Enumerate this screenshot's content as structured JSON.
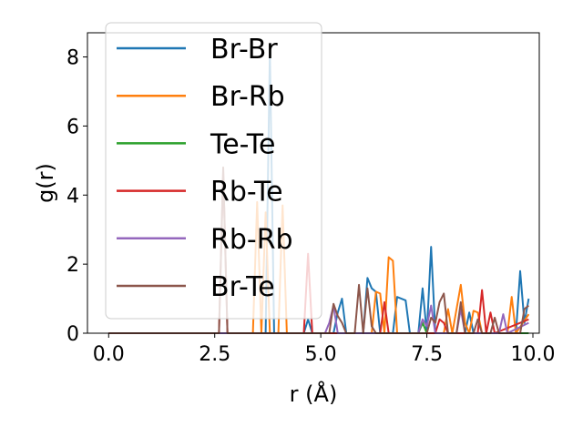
{
  "chart_data": {
    "type": "line",
    "xlabel": "r (Å)",
    "ylabel": "g(r)",
    "xlim": [
      -0.5,
      10.15
    ],
    "ylim": [
      0,
      8.7
    ],
    "xticks": [
      0.0,
      2.5,
      5.0,
      7.5,
      10.0
    ],
    "xtick_labels": [
      "0.0",
      "2.5",
      "5.0",
      "7.5",
      "10.0"
    ],
    "yticks": [
      0,
      2,
      4,
      6,
      8
    ],
    "ytick_labels": [
      "0",
      "2",
      "4",
      "6",
      "8"
    ],
    "grid": false,
    "legend_position": "top-left",
    "series": [
      {
        "name": "Br-Br",
        "color": "#1f77b4",
        "points": [
          [
            0,
            0
          ],
          [
            3.6,
            0
          ],
          [
            3.7,
            0
          ],
          [
            3.8,
            8.2
          ],
          [
            3.9,
            0
          ],
          [
            4.6,
            0
          ],
          [
            4.7,
            0.4
          ],
          [
            4.8,
            0
          ],
          [
            5.3,
            0
          ],
          [
            5.4,
            0.6
          ],
          [
            5.5,
            1.0
          ],
          [
            5.6,
            0
          ],
          [
            6.0,
            0
          ],
          [
            6.1,
            1.6
          ],
          [
            6.2,
            1.3
          ],
          [
            6.3,
            1.2
          ],
          [
            6.4,
            0
          ],
          [
            6.7,
            0
          ],
          [
            6.8,
            1.05
          ],
          [
            6.9,
            1.0
          ],
          [
            7.0,
            0.95
          ],
          [
            7.1,
            0
          ],
          [
            7.3,
            0
          ],
          [
            7.4,
            1.3
          ],
          [
            7.5,
            0
          ],
          [
            7.6,
            2.5
          ],
          [
            7.7,
            0
          ],
          [
            8.4,
            0
          ],
          [
            8.5,
            0.6
          ],
          [
            8.6,
            0
          ],
          [
            9.6,
            0
          ],
          [
            9.7,
            1.8
          ],
          [
            9.8,
            0.3
          ],
          [
            9.9,
            1.0
          ]
        ]
      },
      {
        "name": "Br-Rb",
        "color": "#ff7f0e",
        "points": [
          [
            0,
            0
          ],
          [
            3.4,
            0
          ],
          [
            3.5,
            3.8
          ],
          [
            3.6,
            0
          ],
          [
            3.7,
            3.5
          ],
          [
            3.8,
            0
          ],
          [
            4.0,
            0
          ],
          [
            4.1,
            3.7
          ],
          [
            4.2,
            0
          ],
          [
            6.2,
            0
          ],
          [
            6.3,
            1.2
          ],
          [
            6.4,
            1.15
          ],
          [
            6.5,
            0
          ],
          [
            6.6,
            2.2
          ],
          [
            6.7,
            2.1
          ],
          [
            6.8,
            0
          ],
          [
            7.9,
            0
          ],
          [
            8.0,
            0.7
          ],
          [
            8.1,
            0
          ],
          [
            8.3,
            1.4
          ],
          [
            8.4,
            0.3
          ],
          [
            8.5,
            0
          ],
          [
            8.6,
            0.65
          ],
          [
            8.7,
            0.6
          ],
          [
            8.8,
            0
          ],
          [
            9.4,
            0
          ],
          [
            9.5,
            1.05
          ],
          [
            9.6,
            0
          ],
          [
            9.9,
            0.55
          ]
        ]
      },
      {
        "name": "Te-Te",
        "color": "#2ca02c",
        "points": [
          [
            0,
            0
          ],
          [
            7.3,
            0
          ],
          [
            7.4,
            0.3
          ],
          [
            7.5,
            0
          ],
          [
            9.9,
            0
          ]
        ]
      },
      {
        "name": "Rb-Te",
        "color": "#d62728",
        "points": [
          [
            0,
            0
          ],
          [
            2.6,
            0
          ],
          [
            2.7,
            4.7
          ],
          [
            2.8,
            0
          ],
          [
            4.6,
            0
          ],
          [
            4.7,
            2.3
          ],
          [
            4.8,
            0
          ],
          [
            6.4,
            0
          ],
          [
            6.5,
            0.9
          ],
          [
            6.6,
            0
          ],
          [
            7.7,
            0
          ],
          [
            7.8,
            0.4
          ],
          [
            7.9,
            0.3
          ],
          [
            8.0,
            0
          ],
          [
            8.7,
            0
          ],
          [
            8.8,
            1.25
          ],
          [
            8.9,
            0
          ],
          [
            9.0,
            0.6
          ],
          [
            9.1,
            0
          ],
          [
            9.9,
            0.4
          ]
        ]
      },
      {
        "name": "Rb-Rb",
        "color": "#9467bd",
        "points": [
          [
            0,
            0
          ],
          [
            5.1,
            0
          ],
          [
            5.2,
            0.3
          ],
          [
            5.3,
            0.8
          ],
          [
            5.4,
            0
          ],
          [
            7.3,
            0
          ],
          [
            7.4,
            0.4
          ],
          [
            7.5,
            0.2
          ],
          [
            7.6,
            0.8
          ],
          [
            7.7,
            0
          ],
          [
            8.2,
            0
          ],
          [
            8.3,
            0.7
          ],
          [
            8.4,
            0
          ],
          [
            9.2,
            0
          ],
          [
            9.3,
            0.55
          ],
          [
            9.4,
            0
          ],
          [
            9.9,
            0.3
          ]
        ]
      },
      {
        "name": "Br-Te",
        "color": "#8c564b",
        "points": [
          [
            0,
            0
          ],
          [
            2.6,
            0
          ],
          [
            2.7,
            4.8
          ],
          [
            2.8,
            0
          ],
          [
            5.2,
            0
          ],
          [
            5.3,
            0.85
          ],
          [
            5.4,
            0.5
          ],
          [
            5.5,
            0.3
          ],
          [
            5.6,
            0
          ],
          [
            5.8,
            0
          ],
          [
            5.9,
            1.4
          ],
          [
            6.0,
            0
          ],
          [
            6.1,
            1.3
          ],
          [
            6.2,
            0.2
          ],
          [
            6.3,
            0
          ],
          [
            7.5,
            0
          ],
          [
            7.6,
            0.45
          ],
          [
            7.7,
            0.3
          ],
          [
            7.8,
            0.9
          ],
          [
            7.9,
            1.15
          ],
          [
            8.0,
            0
          ],
          [
            8.2,
            0
          ],
          [
            8.3,
            0.9
          ],
          [
            8.4,
            0
          ],
          [
            8.6,
            0
          ],
          [
            8.7,
            0.4
          ],
          [
            8.8,
            0
          ],
          [
            9.0,
            0
          ],
          [
            9.1,
            0.45
          ],
          [
            9.2,
            0
          ],
          [
            9.7,
            0
          ],
          [
            9.8,
            0.7
          ],
          [
            9.9,
            0.8
          ]
        ]
      }
    ]
  }
}
